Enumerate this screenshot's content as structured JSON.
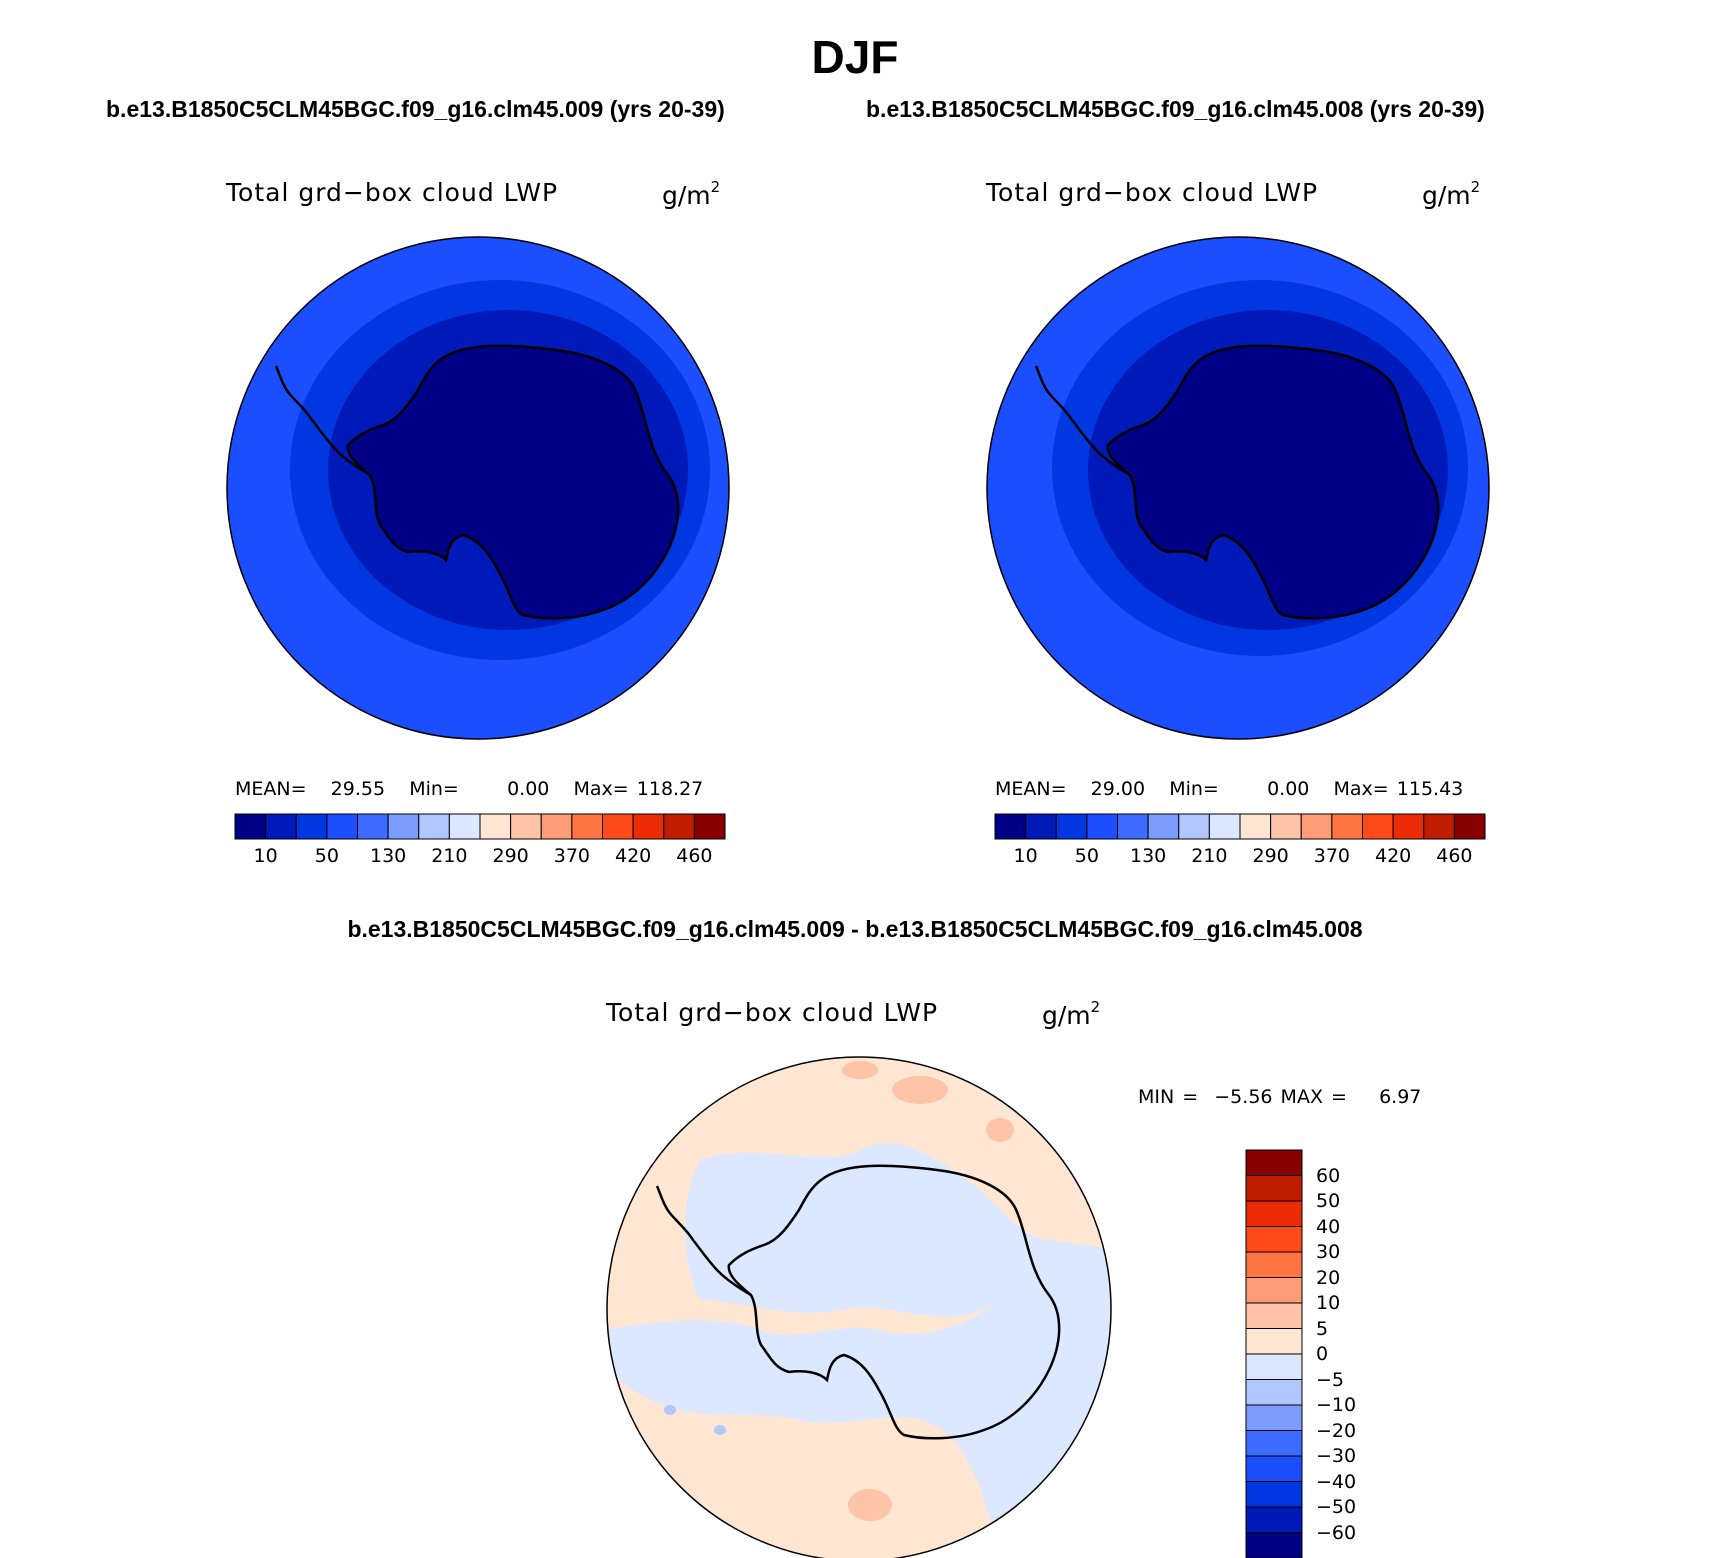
{
  "title": "DJF",
  "panels": [
    {
      "case_title": "b.e13.B1850C5CLM45BGC.f09_g16.clm45.009 (yrs 20-39)",
      "variable_label": "Total grd−box cloud LWP",
      "units_base": "g/m",
      "units_exp": "2",
      "stats": {
        "mean_label": "MEAN=",
        "mean": "29.55",
        "min_label": "Min=",
        "min": "0.00",
        "max_label": "Max=",
        "max": "118.27"
      }
    },
    {
      "case_title": "b.e13.B1850C5CLM45BGC.f09_g16.clm45.008 (yrs 20-39)",
      "variable_label": "Total grd−box cloud LWP",
      "units_base": "g/m",
      "units_exp": "2",
      "stats": {
        "mean_label": "MEAN=",
        "mean": "29.00",
        "min_label": "Min=",
        "min": "0.00",
        "max_label": "Max=",
        "max": "115.43"
      }
    }
  ],
  "abs_colorbar": {
    "colors": [
      "#000087",
      "#0019b9",
      "#0037e0",
      "#1a4eff",
      "#3e6bff",
      "#7c9cff",
      "#b2c6ff",
      "#dbe8ff",
      "#fee6d2",
      "#fdc4a7",
      "#fd9c77",
      "#ff7443",
      "#ff4a19",
      "#eb2b05",
      "#c01c00",
      "#880000"
    ],
    "tick_labels": [
      "10",
      "50",
      "130",
      "210",
      "290",
      "370",
      "420",
      "460"
    ]
  },
  "difference": {
    "title": "b.e13.B1850C5CLM45BGC.f09_g16.clm45.009 - b.e13.B1850C5CLM45BGC.f09_g16.clm45.008",
    "variable_label": "Total grd−box cloud LWP",
    "units_base": "g/m",
    "units_exp": "2",
    "minmax": {
      "min_label": "MIN =",
      "min": "−5.56",
      "max_label": "MAX =",
      "max": "6.97"
    },
    "colorbar": {
      "colors_top_to_bottom": [
        "#880000",
        "#c01c00",
        "#eb2b05",
        "#ff4a19",
        "#ff7443",
        "#fd9c77",
        "#fdc4a7",
        "#fee6d2",
        "#dbe8ff",
        "#b2c6ff",
        "#7c9cff",
        "#3e6bff",
        "#1a4eff",
        "#0037e0",
        "#0019b9",
        "#000087"
      ],
      "tick_labels": [
        "60",
        "50",
        "40",
        "30",
        "20",
        "10",
        "5",
        "0",
        "−5",
        "−10",
        "−20",
        "−30",
        "−40",
        "−50",
        "−60"
      ]
    }
  },
  "colors": {
    "ocean_mid": "#1a4eff",
    "ring_inner": "#0037e0",
    "ring_core": "#0019b9",
    "continent": "#000087",
    "diff_pos": "#fee6d2",
    "diff_neg": "#dbe8ff",
    "diff_pos_strong": "#fdc4a7",
    "diff_neg_strong": "#b2c6ff"
  }
}
